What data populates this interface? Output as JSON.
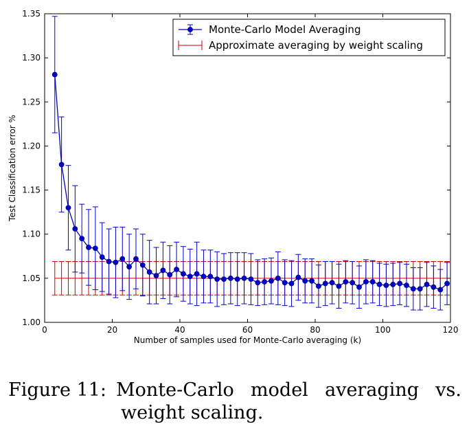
{
  "chart_data": {
    "type": "line",
    "xlabel": "Number of samples used for Monte-Carlo averaging (k)",
    "ylabel": "Test Classification error %",
    "xlim": [
      0,
      120
    ],
    "ylim": [
      1.0,
      1.35
    ],
    "xticks": [
      "0",
      "20",
      "40",
      "60",
      "80",
      "100",
      "120"
    ],
    "yticks": [
      "1.00",
      "1.05",
      "1.10",
      "1.15",
      "1.20",
      "1.25",
      "1.30",
      "1.35"
    ],
    "legend_position": "top-right",
    "series": [
      {
        "name": "Monte-Carlo Model Averaging",
        "color": "#0000cc",
        "x": [
          3,
          5,
          7,
          9,
          11,
          13,
          15,
          17,
          19,
          21,
          23,
          25,
          27,
          29,
          31,
          33,
          35,
          37,
          39,
          41,
          43,
          45,
          47,
          49,
          51,
          53,
          55,
          57,
          59,
          61,
          63,
          65,
          67,
          69,
          71,
          73,
          75,
          77,
          79,
          81,
          83,
          85,
          87,
          89,
          91,
          93,
          95,
          97,
          99,
          101,
          103,
          105,
          107,
          109,
          111,
          113,
          115,
          117,
          119
        ],
        "y": [
          1.281,
          1.179,
          1.13,
          1.106,
          1.095,
          1.085,
          1.084,
          1.074,
          1.069,
          1.068,
          1.072,
          1.063,
          1.072,
          1.065,
          1.057,
          1.053,
          1.059,
          1.054,
          1.06,
          1.055,
          1.052,
          1.055,
          1.052,
          1.052,
          1.049,
          1.049,
          1.05,
          1.049,
          1.05,
          1.049,
          1.045,
          1.046,
          1.047,
          1.05,
          1.045,
          1.044,
          1.051,
          1.047,
          1.047,
          1.041,
          1.044,
          1.045,
          1.041,
          1.046,
          1.045,
          1.04,
          1.046,
          1.046,
          1.043,
          1.042,
          1.043,
          1.044,
          1.042,
          1.038,
          1.038,
          1.043,
          1.04,
          1.037,
          1.044
        ],
        "err": [
          0.066,
          0.054,
          0.048,
          0.049,
          0.039,
          0.043,
          0.047,
          0.039,
          0.037,
          0.04,
          0.036,
          0.037,
          0.034,
          0.035,
          0.036,
          0.032,
          0.032,
          0.033,
          0.031,
          0.031,
          0.031,
          0.036,
          0.03,
          0.03,
          0.031,
          0.029,
          0.029,
          0.03,
          0.029,
          0.029,
          0.026,
          0.026,
          0.026,
          0.03,
          0.026,
          0.026,
          0.026,
          0.025,
          0.025,
          0.024,
          0.025,
          0.024,
          0.025,
          0.024,
          0.024,
          0.024,
          0.025,
          0.024,
          0.024,
          0.024,
          0.024,
          0.024,
          0.024,
          0.024,
          0.024,
          0.025,
          0.024,
          0.023,
          0.024
        ]
      },
      {
        "name": "Approximate averaging by weight scaling",
        "color": "#cc0000",
        "x": [
          3,
          5,
          7,
          9,
          11,
          13,
          15,
          17,
          19,
          21,
          23,
          25,
          27,
          29,
          31,
          33,
          35,
          37,
          39,
          41,
          43,
          45,
          47,
          49,
          51,
          53,
          55,
          57,
          59,
          61,
          63,
          65,
          67,
          69,
          71,
          73,
          75,
          77,
          79,
          81,
          83,
          85,
          87,
          89,
          91,
          93,
          95,
          97,
          99,
          101,
          103,
          105,
          107,
          109,
          111,
          113,
          115,
          117,
          119
        ],
        "y": [
          1.05,
          1.05,
          1.05,
          1.05,
          1.05,
          1.05,
          1.05,
          1.05,
          1.05,
          1.05,
          1.05,
          1.05,
          1.05,
          1.05,
          1.05,
          1.05,
          1.05,
          1.05,
          1.05,
          1.05,
          1.05,
          1.05,
          1.05,
          1.05,
          1.05,
          1.05,
          1.05,
          1.05,
          1.05,
          1.05,
          1.05,
          1.05,
          1.05,
          1.05,
          1.05,
          1.05,
          1.05,
          1.05,
          1.05,
          1.05,
          1.05,
          1.05,
          1.05,
          1.05,
          1.05,
          1.05,
          1.05,
          1.05,
          1.05,
          1.05,
          1.05,
          1.05,
          1.05,
          1.05,
          1.05,
          1.05,
          1.05,
          1.05,
          1.05
        ],
        "err": 0.019
      }
    ]
  },
  "caption": {
    "figure_number": "Figure 11:",
    "text_line1": "Monte-Carlo model averaging vs.",
    "text_line2": "weight scaling."
  }
}
